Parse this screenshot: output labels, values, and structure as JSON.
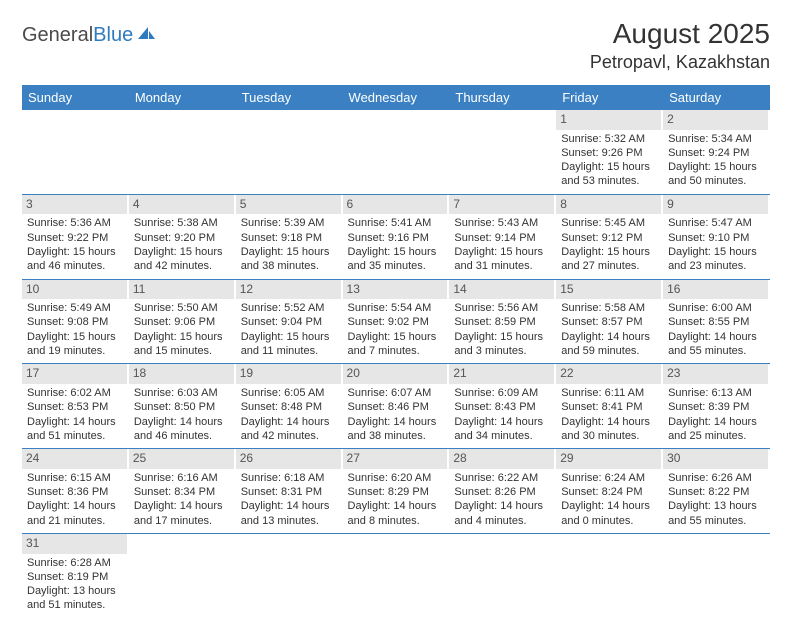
{
  "logo": {
    "text_dark": "General",
    "text_blue": "Blue"
  },
  "title": "August 2025",
  "location": "Petropavl, Kazakhstan",
  "columns": [
    "Sunday",
    "Monday",
    "Tuesday",
    "Wednesday",
    "Thursday",
    "Friday",
    "Saturday"
  ],
  "colors": {
    "header_bg": "#3a80c3",
    "header_fg": "#ffffff",
    "daynum_bg": "#e6e6e6",
    "text": "#333333",
    "rule": "#3a80c3"
  },
  "weeks": [
    [
      {
        "day": "",
        "lines": []
      },
      {
        "day": "",
        "lines": []
      },
      {
        "day": "",
        "lines": []
      },
      {
        "day": "",
        "lines": []
      },
      {
        "day": "",
        "lines": []
      },
      {
        "day": "1",
        "lines": [
          "Sunrise: 5:32 AM",
          "Sunset: 9:26 PM",
          "Daylight: 15 hours and 53 minutes."
        ]
      },
      {
        "day": "2",
        "lines": [
          "Sunrise: 5:34 AM",
          "Sunset: 9:24 PM",
          "Daylight: 15 hours and 50 minutes."
        ]
      }
    ],
    [
      {
        "day": "3",
        "lines": [
          "Sunrise: 5:36 AM",
          "Sunset: 9:22 PM",
          "Daylight: 15 hours and 46 minutes."
        ]
      },
      {
        "day": "4",
        "lines": [
          "Sunrise: 5:38 AM",
          "Sunset: 9:20 PM",
          "Daylight: 15 hours and 42 minutes."
        ]
      },
      {
        "day": "5",
        "lines": [
          "Sunrise: 5:39 AM",
          "Sunset: 9:18 PM",
          "Daylight: 15 hours and 38 minutes."
        ]
      },
      {
        "day": "6",
        "lines": [
          "Sunrise: 5:41 AM",
          "Sunset: 9:16 PM",
          "Daylight: 15 hours and 35 minutes."
        ]
      },
      {
        "day": "7",
        "lines": [
          "Sunrise: 5:43 AM",
          "Sunset: 9:14 PM",
          "Daylight: 15 hours and 31 minutes."
        ]
      },
      {
        "day": "8",
        "lines": [
          "Sunrise: 5:45 AM",
          "Sunset: 9:12 PM",
          "Daylight: 15 hours and 27 minutes."
        ]
      },
      {
        "day": "9",
        "lines": [
          "Sunrise: 5:47 AM",
          "Sunset: 9:10 PM",
          "Daylight: 15 hours and 23 minutes."
        ]
      }
    ],
    [
      {
        "day": "10",
        "lines": [
          "Sunrise: 5:49 AM",
          "Sunset: 9:08 PM",
          "Daylight: 15 hours and 19 minutes."
        ]
      },
      {
        "day": "11",
        "lines": [
          "Sunrise: 5:50 AM",
          "Sunset: 9:06 PM",
          "Daylight: 15 hours and 15 minutes."
        ]
      },
      {
        "day": "12",
        "lines": [
          "Sunrise: 5:52 AM",
          "Sunset: 9:04 PM",
          "Daylight: 15 hours and 11 minutes."
        ]
      },
      {
        "day": "13",
        "lines": [
          "Sunrise: 5:54 AM",
          "Sunset: 9:02 PM",
          "Daylight: 15 hours and 7 minutes."
        ]
      },
      {
        "day": "14",
        "lines": [
          "Sunrise: 5:56 AM",
          "Sunset: 8:59 PM",
          "Daylight: 15 hours and 3 minutes."
        ]
      },
      {
        "day": "15",
        "lines": [
          "Sunrise: 5:58 AM",
          "Sunset: 8:57 PM",
          "Daylight: 14 hours and 59 minutes."
        ]
      },
      {
        "day": "16",
        "lines": [
          "Sunrise: 6:00 AM",
          "Sunset: 8:55 PM",
          "Daylight: 14 hours and 55 minutes."
        ]
      }
    ],
    [
      {
        "day": "17",
        "lines": [
          "Sunrise: 6:02 AM",
          "Sunset: 8:53 PM",
          "Daylight: 14 hours and 51 minutes."
        ]
      },
      {
        "day": "18",
        "lines": [
          "Sunrise: 6:03 AM",
          "Sunset: 8:50 PM",
          "Daylight: 14 hours and 46 minutes."
        ]
      },
      {
        "day": "19",
        "lines": [
          "Sunrise: 6:05 AM",
          "Sunset: 8:48 PM",
          "Daylight: 14 hours and 42 minutes."
        ]
      },
      {
        "day": "20",
        "lines": [
          "Sunrise: 6:07 AM",
          "Sunset: 8:46 PM",
          "Daylight: 14 hours and 38 minutes."
        ]
      },
      {
        "day": "21",
        "lines": [
          "Sunrise: 6:09 AM",
          "Sunset: 8:43 PM",
          "Daylight: 14 hours and 34 minutes."
        ]
      },
      {
        "day": "22",
        "lines": [
          "Sunrise: 6:11 AM",
          "Sunset: 8:41 PM",
          "Daylight: 14 hours and 30 minutes."
        ]
      },
      {
        "day": "23",
        "lines": [
          "Sunrise: 6:13 AM",
          "Sunset: 8:39 PM",
          "Daylight: 14 hours and 25 minutes."
        ]
      }
    ],
    [
      {
        "day": "24",
        "lines": [
          "Sunrise: 6:15 AM",
          "Sunset: 8:36 PM",
          "Daylight: 14 hours and 21 minutes."
        ]
      },
      {
        "day": "25",
        "lines": [
          "Sunrise: 6:16 AM",
          "Sunset: 8:34 PM",
          "Daylight: 14 hours and 17 minutes."
        ]
      },
      {
        "day": "26",
        "lines": [
          "Sunrise: 6:18 AM",
          "Sunset: 8:31 PM",
          "Daylight: 14 hours and 13 minutes."
        ]
      },
      {
        "day": "27",
        "lines": [
          "Sunrise: 6:20 AM",
          "Sunset: 8:29 PM",
          "Daylight: 14 hours and 8 minutes."
        ]
      },
      {
        "day": "28",
        "lines": [
          "Sunrise: 6:22 AM",
          "Sunset: 8:26 PM",
          "Daylight: 14 hours and 4 minutes."
        ]
      },
      {
        "day": "29",
        "lines": [
          "Sunrise: 6:24 AM",
          "Sunset: 8:24 PM",
          "Daylight: 14 hours and 0 minutes."
        ]
      },
      {
        "day": "30",
        "lines": [
          "Sunrise: 6:26 AM",
          "Sunset: 8:22 PM",
          "Daylight: 13 hours and 55 minutes."
        ]
      }
    ],
    [
      {
        "day": "31",
        "lines": [
          "Sunrise: 6:28 AM",
          "Sunset: 8:19 PM",
          "Daylight: 13 hours and 51 minutes."
        ]
      },
      {
        "day": "",
        "lines": []
      },
      {
        "day": "",
        "lines": []
      },
      {
        "day": "",
        "lines": []
      },
      {
        "day": "",
        "lines": []
      },
      {
        "day": "",
        "lines": []
      },
      {
        "day": "",
        "lines": []
      }
    ]
  ]
}
